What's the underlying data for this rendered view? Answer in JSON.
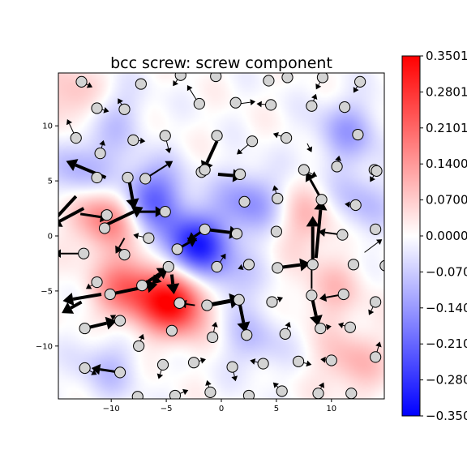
{
  "chart_data": {
    "type": "heatmap",
    "title": "bcc screw: screw component",
    "xlabel": "",
    "ylabel": "",
    "xlim": [
      -14.8,
      14.8
    ],
    "ylim": [
      -14.8,
      14.8
    ],
    "xticks": [
      -10,
      -5,
      0,
      5,
      10
    ],
    "yticks": [
      10,
      5,
      0,
      -5,
      -10
    ],
    "xtick_labels": [
      "−10",
      "−5",
      "0",
      "5",
      "10"
    ],
    "ytick_labels": [
      "10",
      "5",
      "0",
      "−5",
      "−10"
    ],
    "colormap": "bwr",
    "colors": {
      "low": "#0000ff",
      "mid": "#ffffff",
      "high": "#ff0000",
      "atom_fill": "#d3d3d3",
      "arrow": "#000000"
    },
    "colorbar": {
      "min": -0.35,
      "max": 0.35,
      "ticks": [
        0.35,
        0.28,
        0.21,
        0.14,
        0.07,
        0.0,
        -0.07,
        -0.14,
        -0.21,
        -0.28,
        -0.35
      ],
      "tick_labels": [
        "0.3501",
        "0.2801",
        "0.2101",
        "0.1400",
        "0.0700",
        "0.0000",
        "−0.0700",
        "−0.1400",
        "−0.2101",
        "−0.2801",
        "−0.3501"
      ]
    },
    "field_peaks": [
      {
        "x": -4.2,
        "y": -6.0,
        "value": 0.34
      },
      {
        "x": -8.5,
        "y": -4.8,
        "value": 0.2
      },
      {
        "x": -10.5,
        "y": 1.8,
        "value": 0.2
      },
      {
        "x": -13.5,
        "y": 12.5,
        "value": 0.1
      },
      {
        "x": 8.0,
        "y": 1.5,
        "value": 0.1
      },
      {
        "x": 10.0,
        "y": -5.0,
        "value": 0.08
      },
      {
        "x": 12.0,
        "y": -11.5,
        "value": 0.1
      },
      {
        "x": -2.5,
        "y": -1.0,
        "value": -0.3
      },
      {
        "x": -6.5,
        "y": 3.5,
        "value": -0.22
      },
      {
        "x": -12.5,
        "y": 6.0,
        "value": -0.12
      },
      {
        "x": 2.5,
        "y": 3.0,
        "value": -0.15
      },
      {
        "x": 0.5,
        "y": -4.0,
        "value": -0.08
      },
      {
        "x": 3.0,
        "y": -9.5,
        "value": -0.08
      },
      {
        "x": 11.5,
        "y": 9.5,
        "value": -0.12
      },
      {
        "x": 12.5,
        "y": 3.0,
        "value": -0.1
      },
      {
        "x": -10.0,
        "y": 11.0,
        "value": -0.08
      },
      {
        "x": -10.5,
        "y": -12.0,
        "value": -0.08
      }
    ],
    "atoms": [
      {
        "x": -12.7,
        "y": 14.0
      },
      {
        "x": -7.3,
        "y": 13.8
      },
      {
        "x": -3.7,
        "y": 14.6
      },
      {
        "x": -0.5,
        "y": 14.5
      },
      {
        "x": 4.3,
        "y": 14.1
      },
      {
        "x": 6.0,
        "y": 14.4
      },
      {
        "x": 9.2,
        "y": 14.4
      },
      {
        "x": 12.6,
        "y": 14.0
      },
      {
        "x": -11.3,
        "y": 11.6
      },
      {
        "x": -8.8,
        "y": 11.5
      },
      {
        "x": -2.0,
        "y": 12.0
      },
      {
        "x": 1.3,
        "y": 12.1
      },
      {
        "x": 4.5,
        "y": 11.9
      },
      {
        "x": 8.2,
        "y": 11.8
      },
      {
        "x": 11.2,
        "y": 11.7
      },
      {
        "x": -13.2,
        "y": 8.9
      },
      {
        "x": -8.0,
        "y": 8.7
      },
      {
        "x": -5.1,
        "y": 9.1
      },
      {
        "x": -0.4,
        "y": 9.1
      },
      {
        "x": 2.8,
        "y": 8.6
      },
      {
        "x": 5.9,
        "y": 8.9
      },
      {
        "x": 12.4,
        "y": 9.2
      },
      {
        "x": -11.0,
        "y": 7.5
      },
      {
        "x": -1.8,
        "y": 5.8
      },
      {
        "x": -1.5,
        "y": 6.0
      },
      {
        "x": 1.7,
        "y": 5.6
      },
      {
        "x": 7.5,
        "y": 6.0
      },
      {
        "x": 10.5,
        "y": 6.3
      },
      {
        "x": 13.9,
        "y": 6.0
      },
      {
        "x": 14.1,
        "y": 5.9
      },
      {
        "x": -11.3,
        "y": 5.3
      },
      {
        "x": -8.5,
        "y": 5.3
      },
      {
        "x": -6.9,
        "y": 5.2
      },
      {
        "x": 2.1,
        "y": 3.1
      },
      {
        "x": 5.1,
        "y": 3.4
      },
      {
        "x": 9.1,
        "y": 3.3
      },
      {
        "x": 12.2,
        "y": 2.8
      },
      {
        "x": -10.4,
        "y": 1.9
      },
      {
        "x": -10.6,
        "y": 0.7
      },
      {
        "x": -5.1,
        "y": 2.2
      },
      {
        "x": -1.5,
        "y": 0.6
      },
      {
        "x": 1.4,
        "y": 0.2
      },
      {
        "x": 5.0,
        "y": 0.4
      },
      {
        "x": 11.0,
        "y": 0.1
      },
      {
        "x": 14.0,
        "y": 0.6
      },
      {
        "x": -6.6,
        "y": -0.2
      },
      {
        "x": -4.0,
        "y": -1.2
      },
      {
        "x": -12.5,
        "y": -1.6
      },
      {
        "x": -8.8,
        "y": -1.7
      },
      {
        "x": -4.8,
        "y": -2.8
      },
      {
        "x": -0.4,
        "y": -2.8
      },
      {
        "x": 2.5,
        "y": -2.6
      },
      {
        "x": 5.1,
        "y": -2.9
      },
      {
        "x": 8.3,
        "y": -2.6
      },
      {
        "x": 12.0,
        "y": -2.6
      },
      {
        "x": 14.9,
        "y": -2.7
      },
      {
        "x": -11.3,
        "y": -4.2
      },
      {
        "x": -7.2,
        "y": -4.5
      },
      {
        "x": -10.1,
        "y": -5.3
      },
      {
        "x": -3.8,
        "y": -6.1
      },
      {
        "x": -1.3,
        "y": -6.3
      },
      {
        "x": 1.6,
        "y": -5.8
      },
      {
        "x": 4.6,
        "y": -6.0
      },
      {
        "x": 8.2,
        "y": -5.4
      },
      {
        "x": 11.1,
        "y": -5.3
      },
      {
        "x": 14.0,
        "y": -6.0
      },
      {
        "x": -9.2,
        "y": -7.7
      },
      {
        "x": -12.4,
        "y": -8.4
      },
      {
        "x": -4.5,
        "y": -8.6
      },
      {
        "x": -0.8,
        "y": -9.2
      },
      {
        "x": 2.3,
        "y": -9.0
      },
      {
        "x": 5.8,
        "y": -8.9
      },
      {
        "x": 9.0,
        "y": -8.4
      },
      {
        "x": 11.7,
        "y": -8.3
      },
      {
        "x": -7.5,
        "y": -10.0
      },
      {
        "x": -5.3,
        "y": -11.7
      },
      {
        "x": -2.5,
        "y": -11.5
      },
      {
        "x": 1.0,
        "y": -11.9
      },
      {
        "x": 3.8,
        "y": -11.6
      },
      {
        "x": 7.0,
        "y": -11.4
      },
      {
        "x": 10.0,
        "y": -11.3
      },
      {
        "x": 14.0,
        "y": -11.0
      },
      {
        "x": -12.4,
        "y": -12.0
      },
      {
        "x": -9.2,
        "y": -12.4
      },
      {
        "x": -7.6,
        "y": -14.6
      },
      {
        "x": -4.2,
        "y": -14.5
      },
      {
        "x": -1.0,
        "y": -14.2
      },
      {
        "x": 2.5,
        "y": -14.5
      },
      {
        "x": 5.5,
        "y": -14.1
      },
      {
        "x": 8.8,
        "y": -14.3
      },
      {
        "x": 11.8,
        "y": -14.3
      }
    ],
    "displacements": [
      {
        "x": -10.5,
        "y": 5.3,
        "dx": -3.6,
        "dy": 1.5,
        "w": 4
      },
      {
        "x": -13.2,
        "y": 3.6,
        "dx": -2.4,
        "dy": -2.6,
        "w": 4
      },
      {
        "x": -12.5,
        "y": 2.5,
        "dx": -3.0,
        "dy": -1.6,
        "w": 4
      },
      {
        "x": -12.8,
        "y": 2.0,
        "dx": 2.6,
        "dy": -0.4,
        "w": 3
      },
      {
        "x": -10.9,
        "y": 0.8,
        "dx": 3.8,
        "dy": 1.8,
        "w": 4
      },
      {
        "x": -8.4,
        "y": 5.2,
        "dx": 0.5,
        "dy": -2.8,
        "w": 4
      },
      {
        "x": -7.5,
        "y": 2.2,
        "dx": 2.3,
        "dy": 0.0,
        "w": 3
      },
      {
        "x": -6.9,
        "y": 5.2,
        "dx": 2.5,
        "dy": 1.6,
        "w": 2
      },
      {
        "x": -8.8,
        "y": -0.2,
        "dx": -0.8,
        "dy": -1.4,
        "w": 2
      },
      {
        "x": -12.2,
        "y": -1.6,
        "dx": -3.0,
        "dy": 0.0,
        "w": 2
      },
      {
        "x": -0.3,
        "y": 5.6,
        "dx": 2.3,
        "dy": -0.2,
        "w": 4
      },
      {
        "x": -0.4,
        "y": 8.6,
        "dx": -1.3,
        "dy": -2.8,
        "w": 4
      },
      {
        "x": -1.5,
        "y": 0.6,
        "dx": 3.2,
        "dy": -0.4,
        "w": 4
      },
      {
        "x": -1.5,
        "y": 0.6,
        "dx": -1.6,
        "dy": -1.1,
        "w": 3
      },
      {
        "x": -4.0,
        "y": -1.2,
        "dx": 1.8,
        "dy": 1.0,
        "w": 3
      },
      {
        "x": -4.8,
        "y": -2.8,
        "dx": -1.5,
        "dy": -1.6,
        "w": 3
      },
      {
        "x": -7.2,
        "y": -4.5,
        "dx": 2.4,
        "dy": 1.6,
        "w": 4
      },
      {
        "x": -10.1,
        "y": -5.3,
        "dx": 4.3,
        "dy": 0.9,
        "w": 4
      },
      {
        "x": -10.9,
        "y": -5.3,
        "dx": -3.5,
        "dy": -0.6,
        "w": 4
      },
      {
        "x": -12.7,
        "y": -6.0,
        "dx": -1.8,
        "dy": -1.0,
        "w": 4
      },
      {
        "x": -12.4,
        "y": -8.4,
        "dx": 2.9,
        "dy": 0.7,
        "w": 4
      },
      {
        "x": -4.5,
        "y": -3.5,
        "dx": 0.2,
        "dy": -1.8,
        "w": 4
      },
      {
        "x": -2.4,
        "y": -6.3,
        "dx": -1.4,
        "dy": 0.2,
        "w": 2
      },
      {
        "x": -1.3,
        "y": -6.3,
        "dx": 3.2,
        "dy": 0.6,
        "w": 5
      },
      {
        "x": 1.6,
        "y": -5.8,
        "dx": 0.6,
        "dy": -3.0,
        "w": 4
      },
      {
        "x": 5.1,
        "y": -2.9,
        "dx": 3.0,
        "dy": 0.4,
        "w": 4
      },
      {
        "x": 8.3,
        "y": -2.6,
        "dx": 0.0,
        "dy": 4.4,
        "w": 4
      },
      {
        "x": 8.6,
        "y": -2.0,
        "dx": 0.5,
        "dy": 5.3,
        "w": 4
      },
      {
        "x": 8.2,
        "y": -5.4,
        "dx": 0.6,
        "dy": -2.8,
        "w": 4
      },
      {
        "x": 9.1,
        "y": 3.3,
        "dx": -1.4,
        "dy": 2.5,
        "w": 3
      },
      {
        "x": 8.2,
        "y": -4.8,
        "dx": 0.0,
        "dy": 2.5,
        "w": 2
      },
      {
        "x": 11.0,
        "y": 0.1,
        "dx": -2.2,
        "dy": 0.3,
        "w": 2
      },
      {
        "x": 11.1,
        "y": -5.3,
        "dx": -2.2,
        "dy": -0.4,
        "w": 2
      },
      {
        "x": -9.2,
        "y": -12.4,
        "dx": -2.6,
        "dy": 0.4,
        "w": 3
      },
      {
        "x": -2.1,
        "y": 12.1,
        "dx": -1.0,
        "dy": 1.6,
        "w": 1
      },
      {
        "x": 1.6,
        "y": 12.0,
        "dx": 1.5,
        "dy": 0.2,
        "w": 1
      },
      {
        "x": 4.5,
        "y": 11.9,
        "dx": -1.3,
        "dy": 0.1,
        "w": 1
      },
      {
        "x": -11.3,
        "y": 11.6,
        "dx": 1.1,
        "dy": -0.3,
        "w": 1
      },
      {
        "x": -8.8,
        "y": 11.5,
        "dx": -0.6,
        "dy": 1.0,
        "w": 1
      },
      {
        "x": -13.2,
        "y": 8.9,
        "dx": -0.8,
        "dy": 1.7,
        "w": 1
      },
      {
        "x": -7.9,
        "y": 8.7,
        "dx": 1.0,
        "dy": -0.1,
        "w": 1
      },
      {
        "x": -5.1,
        "y": 9.1,
        "dx": 0.4,
        "dy": -1.6,
        "w": 1
      },
      {
        "x": 2.8,
        "y": 8.6,
        "dx": -1.4,
        "dy": -1.2,
        "w": 1
      },
      {
        "x": 5.9,
        "y": 8.9,
        "dx": -1.2,
        "dy": 0.4,
        "w": 1
      },
      {
        "x": 8.2,
        "y": 11.8,
        "dx": 0.4,
        "dy": 1.1,
        "w": 1
      },
      {
        "x": 7.8,
        "y": 8.4,
        "dx": 0.4,
        "dy": -0.8,
        "w": 1
      },
      {
        "x": 5.1,
        "y": 3.4,
        "dx": -0.3,
        "dy": 1.2,
        "w": 1
      },
      {
        "x": 12.2,
        "y": 2.8,
        "dx": -1.0,
        "dy": 0.1,
        "w": 1
      },
      {
        "x": 14.1,
        "y": 5.9,
        "dx": -0.6,
        "dy": -1.0,
        "w": 1
      },
      {
        "x": 13.0,
        "y": -1.5,
        "dx": 1.6,
        "dy": 1.2,
        "w": 1
      },
      {
        "x": 2.5,
        "y": -2.6,
        "dx": -1.0,
        "dy": -0.4,
        "w": 1
      },
      {
        "x": -0.4,
        "y": -2.8,
        "dx": 0.8,
        "dy": 1.2,
        "w": 1
      },
      {
        "x": 4.6,
        "y": -6.0,
        "dx": 1.0,
        "dy": 0.4,
        "w": 1
      },
      {
        "x": -0.8,
        "y": -9.2,
        "dx": 0.3,
        "dy": 1.4,
        "w": 1
      },
      {
        "x": 5.8,
        "y": -8.9,
        "dx": 0.4,
        "dy": 1.1,
        "w": 1
      },
      {
        "x": 9.0,
        "y": -8.4,
        "dx": 1.0,
        "dy": 0.2,
        "w": 1
      },
      {
        "x": 11.7,
        "y": -8.3,
        "dx": -1.1,
        "dy": 0.3,
        "w": 1
      },
      {
        "x": 14.0,
        "y": -6.0,
        "dx": -0.6,
        "dy": -1.2,
        "w": 1
      },
      {
        "x": -7.5,
        "y": -10.0,
        "dx": 0.4,
        "dy": 1.1,
        "w": 1
      },
      {
        "x": -5.3,
        "y": -11.7,
        "dx": -0.4,
        "dy": -1.3,
        "w": 1
      },
      {
        "x": -2.5,
        "y": -11.5,
        "dx": 1.1,
        "dy": 0.3,
        "w": 1
      },
      {
        "x": 1.0,
        "y": -11.9,
        "dx": 0.3,
        "dy": -1.3,
        "w": 1
      },
      {
        "x": 3.8,
        "y": -11.6,
        "dx": -1.2,
        "dy": 0.3,
        "w": 1
      },
      {
        "x": 7.0,
        "y": -11.4,
        "dx": 1.2,
        "dy": -0.3,
        "w": 1
      },
      {
        "x": 10.0,
        "y": -11.3,
        "dx": -1.0,
        "dy": 0.1,
        "w": 1
      },
      {
        "x": 14.0,
        "y": -11.0,
        "dx": 0.4,
        "dy": 1.4,
        "w": 1
      },
      {
        "x": -12.4,
        "y": -12.0,
        "dx": 1.1,
        "dy": -0.6,
        "w": 1
      },
      {
        "x": -4.2,
        "y": -14.5,
        "dx": 1.2,
        "dy": 0.5,
        "w": 1
      },
      {
        "x": -1.0,
        "y": -14.2,
        "dx": -0.3,
        "dy": 1.1,
        "w": 1
      },
      {
        "x": 5.5,
        "y": -14.1,
        "dx": -0.8,
        "dy": 0.8,
        "w": 1
      },
      {
        "x": 8.8,
        "y": -14.3,
        "dx": 0.5,
        "dy": 1.0,
        "w": 1
      },
      {
        "x": -11.3,
        "y": -4.2,
        "dx": -1.0,
        "dy": -0.6,
        "w": 1
      },
      {
        "x": -9.2,
        "y": -7.7,
        "dx": -0.9,
        "dy": 0.5,
        "w": 1
      },
      {
        "x": -11.0,
        "y": 7.5,
        "dx": 0.3,
        "dy": 1.2,
        "w": 1
      },
      {
        "x": -6.6,
        "y": -0.2,
        "dx": -1.4,
        "dy": 0.3,
        "w": 1
      },
      {
        "x": 7.5,
        "y": 6.0,
        "dx": 1.2,
        "dy": -0.6,
        "w": 1
      },
      {
        "x": 10.5,
        "y": 6.3,
        "dx": 0.2,
        "dy": 1.0,
        "w": 1
      },
      {
        "x": 12.6,
        "y": 14.0,
        "dx": -0.6,
        "dy": -1.0,
        "w": 1
      },
      {
        "x": -12.7,
        "y": 14.0,
        "dx": 1.0,
        "dy": -0.5,
        "w": 1
      },
      {
        "x": -3.7,
        "y": 14.6,
        "dx": -0.7,
        "dy": -1.0,
        "w": 1
      },
      {
        "x": 9.2,
        "y": 14.4,
        "dx": -0.6,
        "dy": -1.1,
        "w": 1
      }
    ]
  }
}
